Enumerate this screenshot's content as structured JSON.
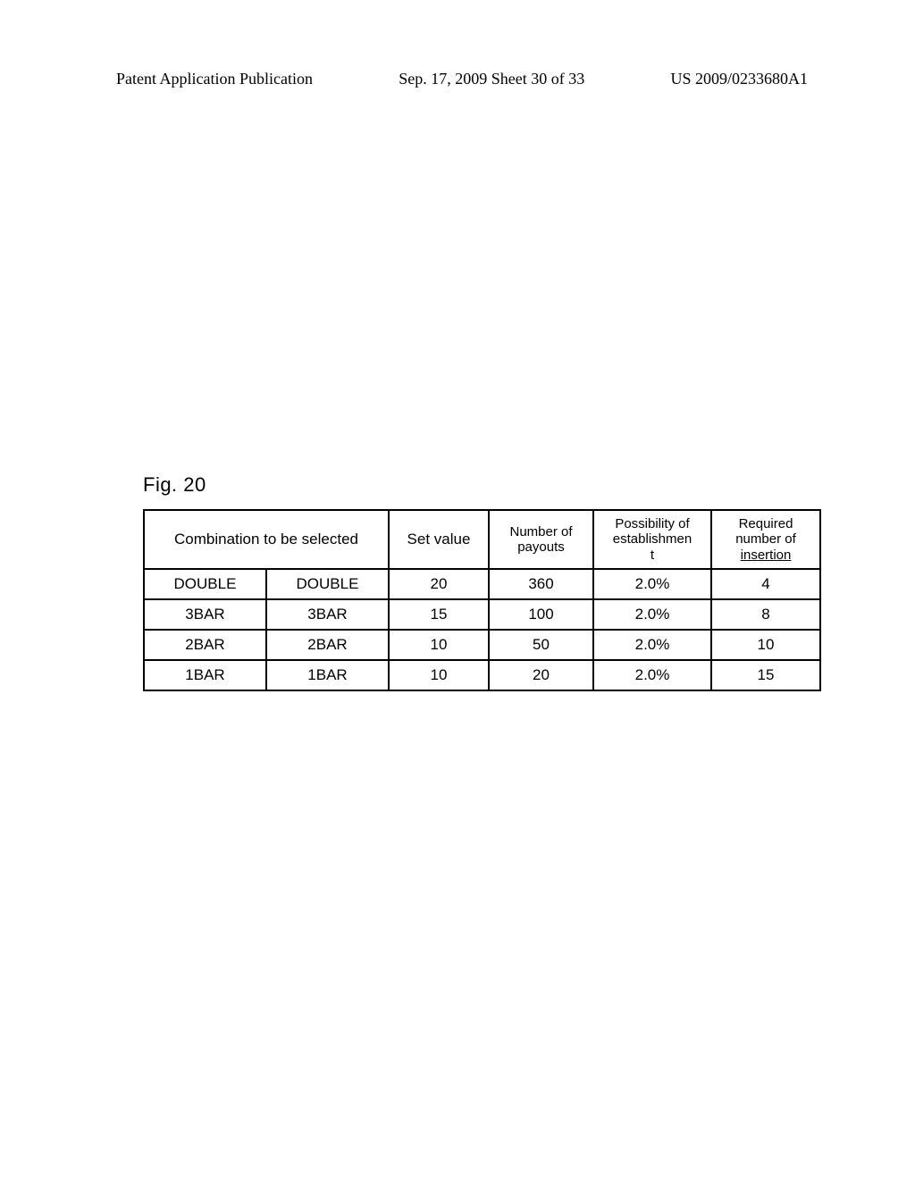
{
  "header": {
    "left": "Patent Application Publication",
    "center": "Sep. 17, 2009  Sheet 30 of 33",
    "right": "US 2009/0233680A1"
  },
  "figure_label": "Fig. 20",
  "table": {
    "headers": {
      "combination": "Combination to be selected",
      "set_value": "Set value",
      "payouts_l1": "Number of",
      "payouts_l2": "payouts",
      "poss_l1": "Possibility of",
      "poss_l2": "establishmen",
      "poss_l3": "t",
      "req_l1": "Required",
      "req_l2": "number of",
      "req_l3": "insertion"
    },
    "rows": [
      {
        "c1": "DOUBLE",
        "c2": "DOUBLE",
        "set": "20",
        "pay": "360",
        "poss": "2.0%",
        "req": "4"
      },
      {
        "c1": "3BAR",
        "c2": "3BAR",
        "set": "15",
        "pay": "100",
        "poss": "2.0%",
        "req": "8"
      },
      {
        "c1": "2BAR",
        "c2": "2BAR",
        "set": "10",
        "pay": "50",
        "poss": "2.0%",
        "req": "10"
      },
      {
        "c1": "1BAR",
        "c2": "1BAR",
        "set": "10",
        "pay": "20",
        "poss": "2.0%",
        "req": "15"
      }
    ]
  }
}
